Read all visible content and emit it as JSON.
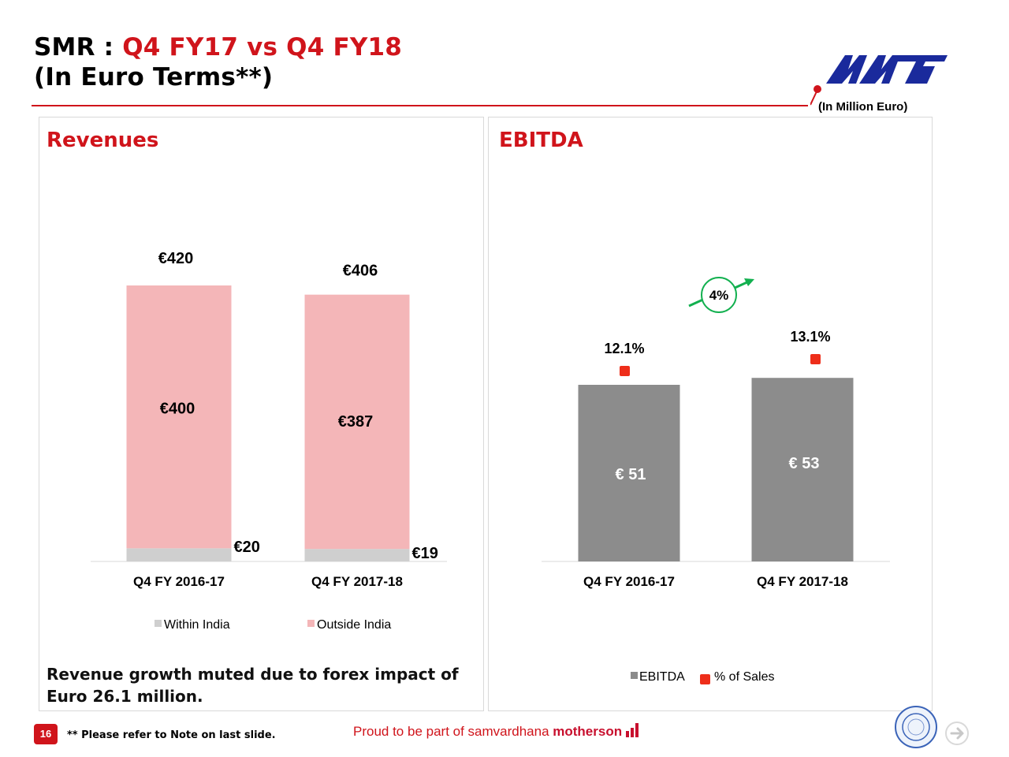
{
  "header": {
    "title_prefix": "SMR : ",
    "title_highlight": "Q4 FY17 vs Q4 FY18",
    "subtitle": "(In Euro Terms**)",
    "unit_note": "(In Million Euro)"
  },
  "colors": {
    "brand_red": "#d0141b",
    "outside_india": "#f4b6b8",
    "within_india": "#cfcfcf",
    "ebitda_bar": "#8c8c8c",
    "pct_marker": "#ee2e1a",
    "growth_green": "#12b04f",
    "logo_blue": "#1a2a9c"
  },
  "revenues_panel": {
    "title": "Revenues",
    "note": "Revenue growth muted due to forex impact of Euro 26.1 million."
  },
  "ebitda_panel": {
    "title": "EBITDA",
    "growth_badge": "4%"
  },
  "chart_data": [
    {
      "type": "bar",
      "stacked": true,
      "title": "Revenues",
      "categories": [
        "Q4 FY 2016-17",
        "Q4 FY 2017-18"
      ],
      "series": [
        {
          "name": "Within India",
          "values": [
            20,
            19
          ],
          "labels": [
            "€20",
            "€19"
          ]
        },
        {
          "name": "Outside India",
          "values": [
            400,
            387
          ],
          "labels": [
            "€400",
            "€387"
          ]
        }
      ],
      "totals": [
        420,
        406
      ],
      "total_labels": [
        "€420",
        "€406"
      ],
      "ylim": [
        0,
        440
      ],
      "legend": "bottom"
    },
    {
      "type": "bar",
      "title": "EBITDA",
      "categories": [
        "Q4 FY 2016-17",
        "Q4 FY 2017-18"
      ],
      "series": [
        {
          "name": "EBITDA",
          "values": [
            51,
            53
          ],
          "labels": [
            "€ 51",
            "€ 53"
          ]
        },
        {
          "name": "% of Sales",
          "type": "scatter",
          "values": [
            12.1,
            13.1
          ],
          "labels": [
            "12.1%",
            "13.1%"
          ]
        }
      ],
      "legend": "bottom"
    }
  ],
  "footer": {
    "page_number": "16",
    "footnote": "** Please refer to Note on last slide.",
    "tagline_prefix": "Proud to be part of samvardhana ",
    "tagline_brand": "motherson"
  }
}
